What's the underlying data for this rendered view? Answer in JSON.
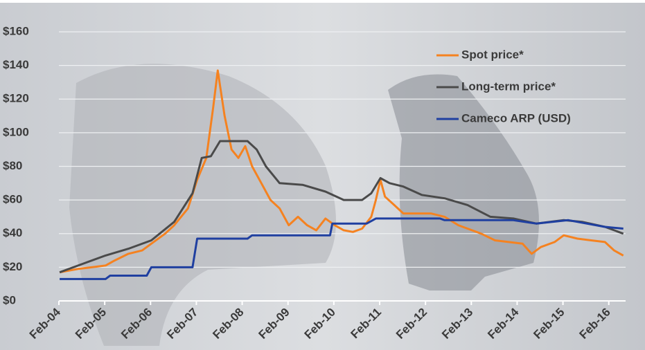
{
  "chart_data": {
    "type": "line",
    "xlim": [
      2004.083,
      2016.45
    ],
    "ylim": [
      0,
      160
    ],
    "yticks": [
      {
        "value": 0,
        "label": "$0"
      },
      {
        "value": 20,
        "label": "$20"
      },
      {
        "value": 40,
        "label": "$40"
      },
      {
        "value": 60,
        "label": "$60"
      },
      {
        "value": 80,
        "label": "$80"
      },
      {
        "value": 100,
        "label": "$100"
      },
      {
        "value": 120,
        "label": "$120"
      },
      {
        "value": 140,
        "label": "$140"
      },
      {
        "value": 160,
        "label": "$160"
      }
    ],
    "xticks": [
      {
        "value": 2004.083,
        "label": "Feb-04"
      },
      {
        "value": 2005.083,
        "label": "Feb-05"
      },
      {
        "value": 2006.083,
        "label": "Feb-06"
      },
      {
        "value": 2007.083,
        "label": "Feb-07"
      },
      {
        "value": 2008.083,
        "label": "Feb-08"
      },
      {
        "value": 2009.083,
        "label": "Feb-09"
      },
      {
        "value": 2010.083,
        "label": "Feb-10"
      },
      {
        "value": 2011.083,
        "label": "Feb-11"
      },
      {
        "value": 2012.083,
        "label": "Feb-12"
      },
      {
        "value": 2013.083,
        "label": "Feb-13"
      },
      {
        "value": 2014.083,
        "label": "Feb-14"
      },
      {
        "value": 2015.083,
        "label": "Feb-15"
      },
      {
        "value": 2016.083,
        "label": "Feb-16"
      }
    ],
    "grid": true,
    "legend": "top-right",
    "series": [
      {
        "name": "Spot price*",
        "color": "#f58220",
        "x": [
          2004.1,
          2004.5,
          2004.8,
          2005.1,
          2005.3,
          2005.6,
          2005.9,
          2006.1,
          2006.4,
          2006.6,
          2006.9,
          2007.1,
          2007.3,
          2007.45,
          2007.55,
          2007.7,
          2007.85,
          2008.0,
          2008.15,
          2008.3,
          2008.5,
          2008.7,
          2008.9,
          2009.1,
          2009.3,
          2009.5,
          2009.7,
          2009.9,
          2010.1,
          2010.3,
          2010.5,
          2010.7,
          2010.9,
          2011.0,
          2011.1,
          2011.2,
          2011.4,
          2011.6,
          2011.9,
          2012.2,
          2012.5,
          2012.8,
          2013.0,
          2013.3,
          2013.6,
          2013.9,
          2014.2,
          2014.4,
          2014.6,
          2014.9,
          2015.1,
          2015.4,
          2015.7,
          2016.0,
          2016.2,
          2016.4
        ],
        "values": [
          17,
          19,
          20,
          21,
          24,
          28,
          30,
          34,
          40,
          45,
          55,
          72,
          85,
          115,
          137,
          110,
          90,
          85,
          92,
          80,
          70,
          60,
          55,
          45,
          50,
          45,
          42,
          49,
          45,
          42,
          41,
          43,
          50,
          60,
          72,
          62,
          57,
          52,
          52,
          52,
          50,
          45,
          43,
          40,
          36,
          35,
          34,
          28,
          32,
          35,
          39,
          37,
          36,
          35,
          30,
          27
        ]
      },
      {
        "name": "Long-term price*",
        "color": "#4a4a4a",
        "x": [
          2004.1,
          2004.6,
          2005.1,
          2005.6,
          2006.1,
          2006.6,
          2007.0,
          2007.2,
          2007.4,
          2007.6,
          2008.2,
          2008.4,
          2008.6,
          2008.9,
          2009.4,
          2009.9,
          2010.3,
          2010.7,
          2010.9,
          2011.1,
          2011.3,
          2011.6,
          2012.0,
          2012.5,
          2013.0,
          2013.5,
          2014.0,
          2014.5,
          2015.1,
          2015.5,
          2016.0,
          2016.4
        ],
        "values": [
          17,
          22,
          27,
          31,
          36,
          47,
          64,
          85,
          86,
          95,
          95,
          90,
          80,
          70,
          69,
          65,
          60,
          60,
          64,
          73,
          70,
          68,
          63,
          61,
          57,
          50,
          49,
          46,
          48,
          47,
          44,
          40
        ]
      },
      {
        "name": "Cameco ARP (USD)",
        "color": "#1f3fa0",
        "x": [
          2004.1,
          2005.1,
          2005.2,
          2006.0,
          2006.1,
          2007.0,
          2007.1,
          2008.2,
          2008.3,
          2010.0,
          2010.05,
          2010.8,
          2011.0,
          2012.4,
          2012.5,
          2014.0,
          2014.5,
          2015.2,
          2015.6,
          2016.0,
          2016.4
        ],
        "values": [
          13,
          13,
          15,
          15,
          20,
          20,
          37,
          37,
          39,
          39,
          46,
          46,
          49,
          49,
          48,
          48,
          46,
          48,
          46,
          44,
          43
        ]
      }
    ]
  }
}
